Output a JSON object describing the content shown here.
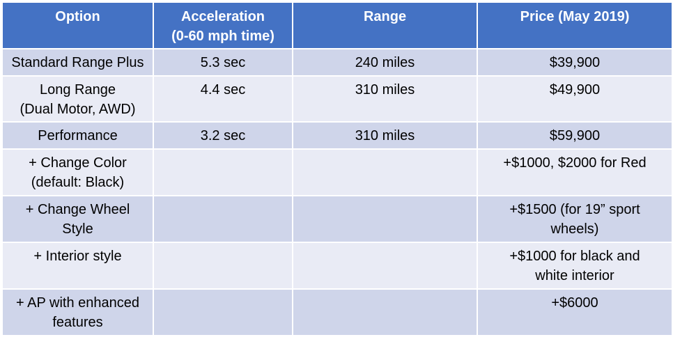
{
  "table": {
    "headers": [
      "Option",
      "Acceleration\n(0-60 mph time)",
      "Range",
      "Price (May 2019)"
    ],
    "rows": [
      [
        "Standard Range Plus",
        "5.3 sec",
        "240 miles",
        "$39,900"
      ],
      [
        "Long Range\n(Dual Motor, AWD)",
        "4.4 sec",
        "310 miles",
        "$49,900"
      ],
      [
        "Performance",
        "3.2 sec",
        "310 miles",
        "$59,900"
      ],
      [
        "+ Change Color\n(default: Black)",
        "",
        "",
        "+$1000, $2000 for Red"
      ],
      [
        "+ Change Wheel\nStyle",
        "",
        "",
        "+$1500 (for 19” sport\nwheels)"
      ],
      [
        "+ Interior style",
        "",
        "",
        "+$1000 for black and\nwhite interior"
      ],
      [
        "+ AP with enhanced\nfeatures",
        "",
        "",
        "+$6000"
      ]
    ]
  },
  "colors": {
    "header_bg": "#4472c4",
    "row_odd_bg": "#cfd5ea",
    "row_even_bg": "#e9ebf5"
  }
}
